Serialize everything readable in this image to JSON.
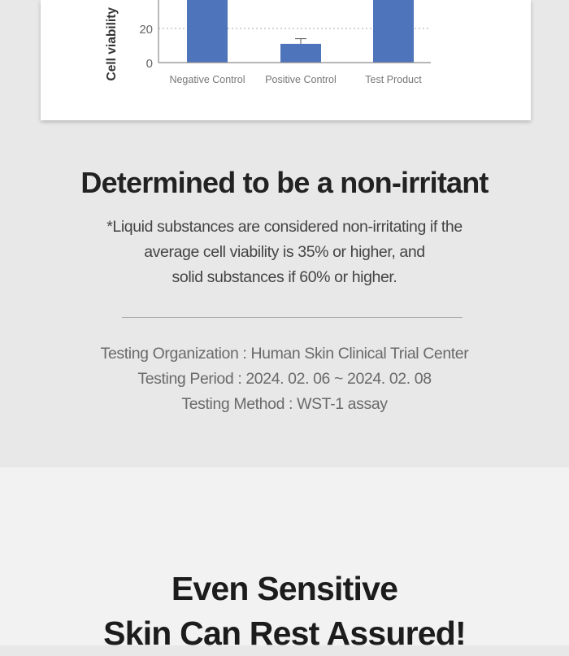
{
  "chart_data": {
    "type": "bar",
    "ylabel": "Cell viability",
    "categories": [
      "Negative Control",
      "Positive Control",
      "Test Product"
    ],
    "values": [
      100,
      11,
      100
    ],
    "error": [
      0,
      3,
      0
    ],
    "visible_ticks": [
      0,
      20
    ],
    "grid": "dotted horizontal",
    "bar_color": "#4e74bc"
  },
  "result": {
    "headline": "Determined to be a non-irritant",
    "note_lines": [
      "*Liquid substances are considered non-irritating if the",
      "average cell viability is 35% or higher, and",
      "solid substances if 60% or higher."
    ]
  },
  "testing": {
    "organization": "Testing Organization : Human Skin Clinical Trial Center",
    "period": "Testing Period : 2024. 02. 06 ~ 2024. 02. 08",
    "method": "Testing Method : WST-1 assay"
  },
  "next_section": {
    "title_line1": "Even Sensitive",
    "title_line2": "Skin Can Rest Assured!"
  }
}
